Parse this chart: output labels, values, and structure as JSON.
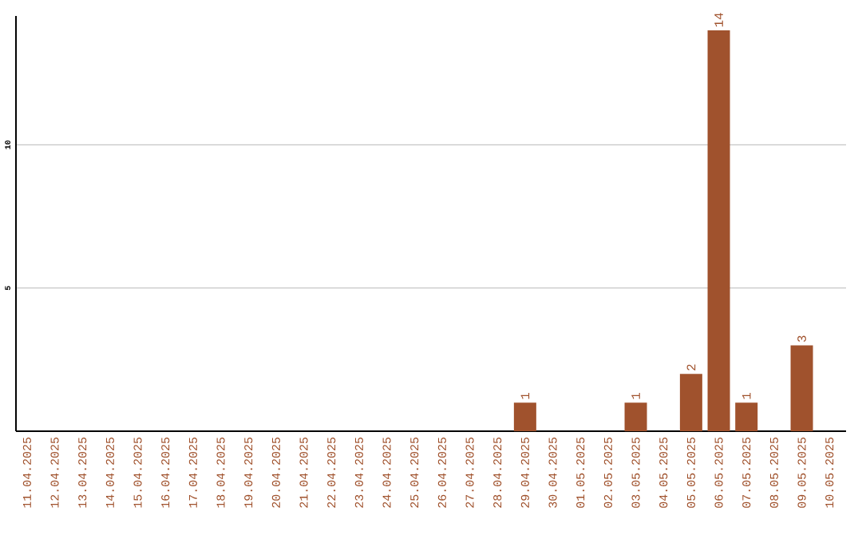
{
  "chart_data": {
    "type": "bar",
    "categories": [
      "11.04.2025",
      "12.04.2025",
      "13.04.2025",
      "14.04.2025",
      "15.04.2025",
      "16.04.2025",
      "17.04.2025",
      "18.04.2025",
      "19.04.2025",
      "20.04.2025",
      "21.04.2025",
      "22.04.2025",
      "23.04.2025",
      "24.04.2025",
      "25.04.2025",
      "26.04.2025",
      "27.04.2025",
      "28.04.2025",
      "29.04.2025",
      "30.04.2025",
      "01.05.2025",
      "02.05.2025",
      "03.05.2025",
      "04.05.2025",
      "05.05.2025",
      "06.05.2025",
      "07.05.2025",
      "08.05.2025",
      "09.05.2025",
      "10.05.2025"
    ],
    "values": [
      0,
      0,
      0,
      0,
      0,
      0,
      0,
      0,
      0,
      0,
      0,
      0,
      0,
      0,
      0,
      0,
      0,
      0,
      1,
      0,
      0,
      0,
      1,
      0,
      2,
      14,
      1,
      0,
      3,
      0
    ],
    "value_labels": [
      null,
      null,
      null,
      null,
      null,
      null,
      null,
      null,
      null,
      null,
      null,
      null,
      null,
      null,
      null,
      null,
      null,
      null,
      "1",
      null,
      null,
      null,
      "1",
      null,
      "2",
      "14",
      "1",
      null,
      "3",
      null
    ],
    "color": "#a0522d",
    "ylim": [
      0,
      14.5
    ],
    "yticks": [
      5,
      10
    ],
    "grid": "y"
  }
}
